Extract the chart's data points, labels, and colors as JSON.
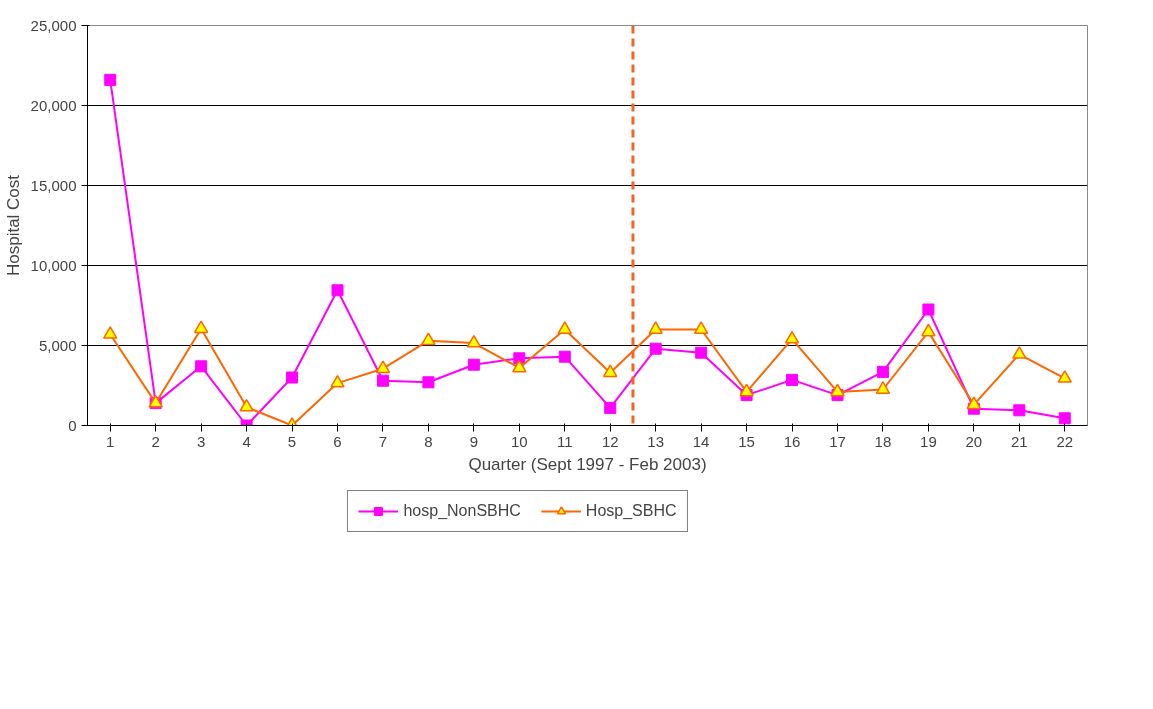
{
  "chart_data": {
    "type": "line",
    "xlabel": "Quarter (Sept 1997 - Feb 2003)",
    "ylabel": "Hospital Cost",
    "x": [
      1,
      2,
      3,
      4,
      5,
      6,
      7,
      8,
      9,
      10,
      11,
      12,
      13,
      14,
      15,
      16,
      17,
      18,
      19,
      20,
      21,
      22
    ],
    "xlim": [
      0.5,
      22.5
    ],
    "xticks": [
      1,
      2,
      3,
      4,
      5,
      6,
      7,
      8,
      9,
      10,
      11,
      12,
      13,
      14,
      15,
      16,
      17,
      18,
      19,
      20,
      21,
      22
    ],
    "ylim": [
      0,
      25000
    ],
    "yticks": [
      {
        "value": 0,
        "label": "0"
      },
      {
        "value": 5000,
        "label": "5,000"
      },
      {
        "value": 10000,
        "label": "10,000"
      },
      {
        "value": 15000,
        "label": "15,000"
      },
      {
        "value": 20000,
        "label": "20,000"
      },
      {
        "value": 25000,
        "label": "25,000"
      }
    ],
    "grid": "y",
    "legend": "bottom",
    "series": [
      {
        "name": "hosp_NonSBHC",
        "color": "#ff00ff",
        "marker": "square",
        "values": [
          21600,
          1400,
          3700,
          0,
          3000,
          8450,
          2800,
          2700,
          3800,
          4200,
          4300,
          1100,
          4800,
          4550,
          1900,
          2850,
          1900,
          3350,
          7250,
          1050,
          950,
          450
        ]
      },
      {
        "name": "Hosp_SBHC",
        "color": "#ff6600",
        "marker": "triangle",
        "values": [
          5700,
          1400,
          6050,
          1150,
          0,
          2650,
          3550,
          5300,
          5150,
          3600,
          6000,
          3300,
          6000,
          6000,
          2100,
          5400,
          2100,
          2250,
          5850,
          1300,
          4450,
          2950
        ]
      }
    ],
    "ref_lines": [
      {
        "axis": "x",
        "value": 12.5,
        "color": "#f26522",
        "line_style": "dashed"
      }
    ]
  }
}
